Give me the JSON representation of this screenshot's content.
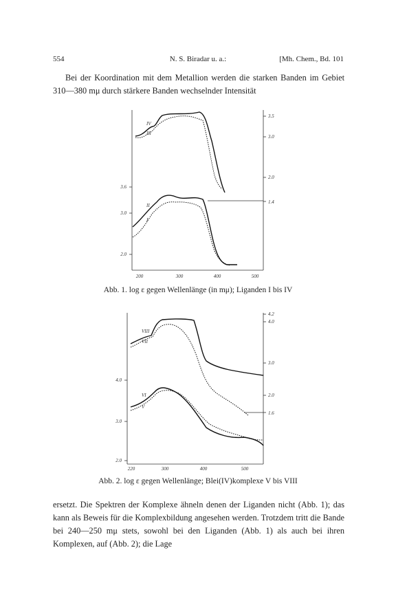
{
  "header": {
    "page": "554",
    "authors": "N. S. Biradar u. a.:",
    "journal": "[Mh. Chem., Bd. 101"
  },
  "paragraphs": [
    "Bei der Koordination mit dem Metallion werden die starken Banden im Gebiet 310—380 mμ durch stärkere Banden wechselnder Intensität",
    "ersetzt. Die Spektren der Komplexe ähneln denen der Liganden nicht (Abb. 1); das kann als Beweis für die Komplexbildung angesehen werden. Trotzdem tritt die Bande bei 240—250 mμ stets, sowohl bei den Liganden (Abb. 1) als auch bei ihren Komplexen, auf (Abb. 2); die Lage"
  ],
  "figures": [
    {
      "left_ticks": [
        "3.6",
        "3.0",
        "2.0"
      ],
      "right_ticks": [
        "3.5",
        "3.0",
        "2.0",
        "1.4"
      ],
      "x_ticks": [
        "200",
        "300",
        "400",
        "500"
      ],
      "curve_labels": [
        "IV",
        "III",
        "II",
        "I"
      ],
      "caption": "Abb. 1. log ε gegen Wellenlänge (in mμ); Liganden I bis IV"
    },
    {
      "left_ticks": [
        "4.0",
        "3.0",
        "2.0"
      ],
      "right_ticks": [
        "4.2",
        "4.0",
        "3.0",
        "2.0",
        "1.6"
      ],
      "x_ticks": [
        "220",
        "300",
        "400",
        "500"
      ],
      "curve_labels": [
        "VIII",
        "VII",
        "VI",
        "V"
      ],
      "caption": "Abb. 2. log ε gegen Wellenlänge; Blei(IV)komplexe V bis VIII"
    }
  ]
}
